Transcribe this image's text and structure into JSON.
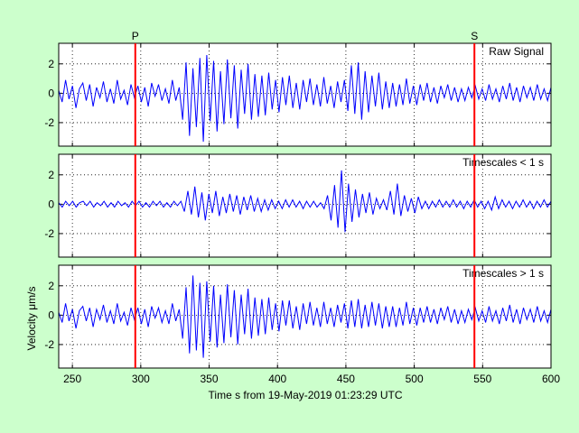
{
  "colors": {
    "figure_background": "#ccffcc",
    "axes_background": "#ffffff",
    "signal": "#0000ff",
    "phase_marker": "#ff0000",
    "grid": "#000000"
  },
  "chart_data": {
    "type": "line",
    "xlabel": "Time s from 19-May-2019 01:23:29 UTC",
    "ylabel": "Velocity μm/s",
    "xlim": [
      240,
      600
    ],
    "x_ticks": [
      250,
      300,
      350,
      400,
      450,
      500,
      550,
      600
    ],
    "grid": true,
    "phase_markers": [
      {
        "label": "P",
        "x": 296
      },
      {
        "label": "S",
        "x": 544
      }
    ],
    "panels": [
      {
        "title": "Raw Signal",
        "ylim": [
          -3.6,
          3.4
        ],
        "y_ticks": [
          2,
          0,
          -2
        ],
        "series": [
          {
            "x_start": 240,
            "x_end": 600,
            "values": [
              0.2,
              -0.6,
              0.9,
              -0.4,
              0.5,
              -1,
              0.3,
              0.7,
              -0.5,
              0.6,
              -0.9,
              0.4,
              -0.3,
              0.8,
              -0.6,
              0.3,
              -0.7,
              0.9,
              -0.4,
              0.2,
              -0.8,
              0.6,
              -0.3,
              0.5,
              -0.6,
              0.4,
              -0.9,
              0.7,
              -0.2,
              0.6,
              -0.5,
              0.3,
              -0.7,
              0.9,
              -0.5,
              0.4,
              -1.8,
              2.1,
              -2.9,
              1.7,
              -2.3,
              2.4,
              -3.3,
              2.6,
              -1.9,
              2.2,
              -2.6,
              1.5,
              -2.1,
              2.3,
              -1.7,
              1.9,
              -2.4,
              1.6,
              -1.4,
              2,
              -1.8,
              1.3,
              -1.6,
              1.2,
              -1.5,
              1.4,
              -1.1,
              0.9,
              -1.3,
              1.1,
              -0.8,
              1.2,
              -1,
              0.7,
              -1.1,
              0.9,
              -0.6,
              1,
              -0.8,
              0.6,
              -0.9,
              1.1,
              -0.7,
              0.5,
              -1,
              0.8,
              -0.6,
              0.9,
              -1.2,
              1.9,
              -1.4,
              2.1,
              -1.8,
              1.5,
              -1.3,
              1.2,
              -0.9,
              1.4,
              -1.1,
              0.8,
              -1,
              0.7,
              -0.9,
              0.6,
              -0.8,
              1,
              -0.7,
              0.5,
              -0.8,
              0.6,
              -0.5,
              0.7,
              -0.6,
              0.4,
              -0.7,
              0.5,
              -0.3,
              0.6,
              -0.5,
              0.4,
              -0.6,
              0.3,
              -0.5,
              0.4,
              -0.3,
              0.5,
              -0.4,
              0.3,
              -0.5,
              0.6,
              -0.4,
              0.3,
              -0.6,
              0.5,
              -0.4,
              0.7,
              -0.5,
              0.4,
              -0.6,
              0.5,
              -0.3,
              0.4,
              -0.5,
              0.6,
              -0.4,
              0.3,
              -0.5,
              0.4
            ]
          }
        ]
      },
      {
        "title": "Timescales < 1 s",
        "ylim": [
          -3.6,
          3.4
        ],
        "y_ticks": [
          2,
          0,
          -2
        ],
        "series": [
          {
            "x_start": 240,
            "x_end": 600,
            "values": [
              0.1,
              -0.2,
              0.2,
              -0.1,
              0.2,
              -0.2,
              0.1,
              0.2,
              -0.1,
              0.2,
              -0.2,
              0.1,
              -0.1,
              0.2,
              -0.2,
              0.1,
              -0.2,
              0.2,
              -0.1,
              0.1,
              -0.2,
              0.2,
              -0.1,
              0.2,
              -0.2,
              0.1,
              -0.2,
              0.2,
              -0.1,
              0.2,
              -0.2,
              0.1,
              -0.2,
              0.2,
              -0.1,
              0.2,
              -0.5,
              0.9,
              -0.7,
              1.2,
              -0.9,
              0.8,
              -1.1,
              0.7,
              -0.6,
              0.9,
              -0.8,
              0.5,
              -0.6,
              0.7,
              -0.5,
              0.6,
              -0.7,
              0.5,
              -0.4,
              0.6,
              -0.5,
              0.4,
              -0.5,
              0.3,
              -0.4,
              0.3,
              -0.3,
              0.2,
              -0.3,
              0.3,
              -0.2,
              0.3,
              -0.2,
              0.2,
              -0.3,
              0.2,
              -0.2,
              0.2,
              -0.2,
              0.1,
              -0.3,
              0.6,
              -1.1,
              1.3,
              -1.6,
              2.3,
              -1.9,
              1.4,
              -1.2,
              1,
              -0.9,
              0.7,
              -0.6,
              0.8,
              -0.7,
              0.4,
              -0.3,
              0.3,
              -0.4,
              0.9,
              -0.7,
              1.4,
              -0.8,
              0.6,
              -0.5,
              0.4,
              -0.6,
              0.5,
              -0.3,
              0.2,
              -0.3,
              0.2,
              -0.2,
              0.3,
              -0.2,
              0.2,
              -0.2,
              0.3,
              -0.2,
              0.2,
              -0.3,
              0.2,
              -0.2,
              0.3,
              -0.2,
              0.2,
              -0.3,
              0.2,
              -0.4,
              0.5,
              -0.3,
              0.3,
              -0.2,
              0.2,
              -0.3,
              0.2,
              -0.2,
              0.3,
              -0.2,
              0.2,
              -0.3,
              0.2,
              -0.2,
              0.3,
              -0.2,
              0.2
            ]
          }
        ]
      },
      {
        "title": "Timescales > 1 s",
        "ylim": [
          -3.6,
          3.4
        ],
        "y_ticks": [
          2,
          0,
          -2
        ],
        "series": [
          {
            "x_start": 240,
            "x_end": 600,
            "values": [
              0.2,
              -0.5,
              0.8,
              -0.4,
              0.4,
              -0.9,
              0.3,
              0.6,
              -0.4,
              0.5,
              -0.8,
              0.4,
              -0.3,
              0.7,
              -0.5,
              0.3,
              -0.6,
              0.8,
              -0.4,
              0.2,
              -0.7,
              0.5,
              -0.3,
              0.5,
              -0.6,
              0.4,
              -0.8,
              0.6,
              -0.2,
              0.5,
              -0.5,
              0.3,
              -0.6,
              0.8,
              -0.4,
              0.4,
              -1.6,
              1.9,
              -2.6,
              2.7,
              -2.4,
              2.2,
              -2.9,
              2.3,
              -1.8,
              2,
              -2.2,
              1.4,
              -1.9,
              2.1,
              -1.5,
              1.7,
              -2,
              1.4,
              -1.3,
              1.8,
              -1.6,
              1.2,
              -1.4,
              1.1,
              -1.3,
              1.2,
              -1,
              0.8,
              -1.1,
              1,
              -0.7,
              1,
              -0.9,
              0.6,
              -1,
              0.8,
              -0.6,
              0.9,
              -0.7,
              0.5,
              -0.8,
              0.9,
              -0.6,
              0.5,
              -0.8,
              0.7,
              -0.5,
              0.8,
              -0.9,
              1,
              -0.8,
              1.1,
              -0.9,
              0.7,
              -0.8,
              0.9,
              -0.7,
              0.8,
              -0.9,
              0.6,
              -0.8,
              0.6,
              -0.8,
              0.5,
              -0.7,
              0.9,
              -0.6,
              0.5,
              -0.7,
              0.5,
              -0.5,
              0.6,
              -0.5,
              0.4,
              -0.6,
              0.5,
              -0.3,
              0.6,
              -0.5,
              0.4,
              -0.6,
              0.3,
              -0.5,
              0.4,
              -0.3,
              0.5,
              -0.4,
              0.3,
              -0.5,
              0.6,
              -0.4,
              0.3,
              -0.6,
              0.5,
              -0.4,
              0.7,
              -0.5,
              0.4,
              -0.6,
              0.5,
              -0.3,
              0.4,
              -0.5,
              0.6,
              -0.4,
              0.3,
              -0.5,
              0.4
            ]
          }
        ]
      }
    ]
  }
}
